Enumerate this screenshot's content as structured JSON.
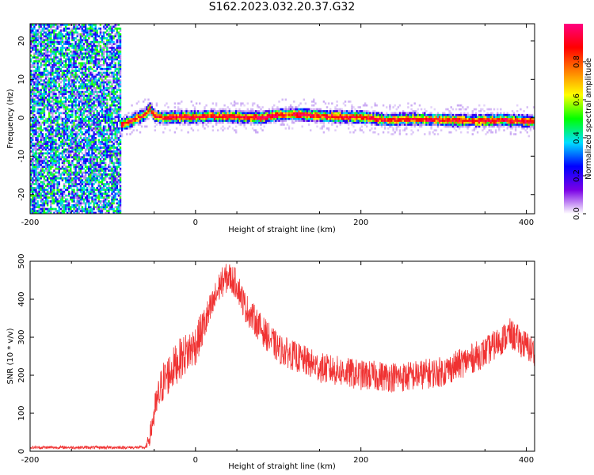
{
  "title": "S162.2023.032.20.37.G32",
  "chart_data": [
    {
      "type": "heatmap",
      "xlabel": "Height of straight line (km)",
      "ylabel": "Frequency (Hz)",
      "xlim": [
        -200,
        410
      ],
      "ylim": [
        -25,
        24.5
      ],
      "x_ticks": [
        -200,
        0,
        200,
        400
      ],
      "y_ticks": [
        -20,
        -10,
        0,
        10,
        20
      ],
      "x_tick_labels": [
        "-200",
        "0",
        "200",
        "400"
      ],
      "y_tick_labels": [
        "-20",
        "-10",
        "0",
        "10",
        "20"
      ],
      "noise_region_x": [
        -200,
        -90
      ],
      "ridge": {
        "x": [
          -95,
          -90,
          -85,
          -80,
          -70,
          -60,
          -55,
          -50,
          -40,
          -20,
          0,
          20,
          50,
          80,
          100,
          120,
          150,
          180,
          200,
          230,
          260,
          300,
          340,
          370,
          410
        ],
        "freq": [
          -1.5,
          -1.8,
          -1.5,
          -1.0,
          0.0,
          1.0,
          2.5,
          0.5,
          0.0,
          0.3,
          0.2,
          0.5,
          0.3,
          0.0,
          0.8,
          1.0,
          0.5,
          0.3,
          0.2,
          -0.5,
          -0.3,
          -0.5,
          -0.8,
          -0.5,
          -1.0
        ]
      },
      "colorbar": {
        "label": "Normalized spectral amplitude",
        "range": [
          0,
          1
        ],
        "ticks": [
          0.0,
          0.2,
          0.4,
          0.6,
          0.8
        ],
        "tick_labels": [
          "0.0",
          "0.2",
          "0.4",
          "0.6",
          "0.8"
        ],
        "colors": [
          "#ffffff",
          "#7a00e6",
          "#0000ff",
          "#00e0ff",
          "#00ff00",
          "#ffff00",
          "#ff8000",
          "#ff0000",
          "#ff0080"
        ]
      },
      "grid": false
    },
    {
      "type": "line",
      "xlabel": "Height of straight line (km)",
      "ylabel": "SNR (10 * v/v)",
      "xlim": [
        -200,
        410
      ],
      "ylim": [
        0,
        500
      ],
      "x_ticks": [
        -200,
        0,
        200,
        400
      ],
      "y_ticks": [
        0,
        100,
        200,
        300,
        400,
        500
      ],
      "x_tick_labels": [
        "-200",
        "0",
        "200",
        "400"
      ],
      "y_tick_labels": [
        "0",
        "100",
        "200",
        "300",
        "400",
        "500"
      ],
      "series": [
        {
          "color": "#f03232",
          "x": [
            -200,
            -150,
            -100,
            -60,
            -55,
            -50,
            -40,
            -20,
            0,
            20,
            30,
            40,
            50,
            60,
            80,
            100,
            150,
            200,
            250,
            300,
            350,
            380,
            410
          ],
          "y": [
            10,
            10,
            10,
            10,
            40,
            100,
            180,
            240,
            280,
            380,
            440,
            460,
            440,
            380,
            320,
            270,
            220,
            200,
            195,
            210,
            260,
            310,
            260
          ],
          "noise": [
            4,
            4,
            4,
            4,
            25,
            45,
            55,
            55,
            55,
            45,
            40,
            40,
            40,
            40,
            40,
            40,
            40,
            40,
            40,
            40,
            40,
            40,
            40
          ]
        }
      ],
      "grid": false
    }
  ]
}
